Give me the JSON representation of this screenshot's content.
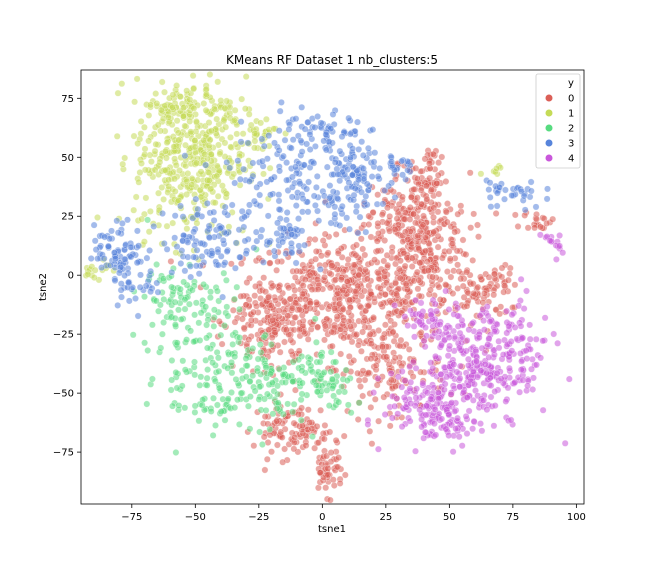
{
  "chart_data": {
    "type": "scatter",
    "title": "KMeans RF Dataset 1 nb_clusters:5",
    "xlabel": "tsne1",
    "ylabel": "tsne2",
    "xlim": [
      -95,
      103
    ],
    "ylim": [
      -97,
      87
    ],
    "xticks": [
      -75,
      -50,
      -25,
      0,
      25,
      50,
      75,
      100
    ],
    "yticks": [
      -75,
      -50,
      -25,
      0,
      25,
      50,
      75
    ],
    "grid": false,
    "legend": {
      "title": "y",
      "placement": "top-right",
      "entries": [
        "0",
        "1",
        "2",
        "3",
        "4"
      ]
    },
    "point_alpha": 0.55,
    "series": [
      {
        "name": "0",
        "color": "#db5f57",
        "clusters": [
          {
            "cx": 10,
            "cy": -8,
            "sx": 20,
            "sy": 12,
            "n": 520
          },
          {
            "cx": 40,
            "cy": 15,
            "sx": 9,
            "sy": 14,
            "n": 240
          },
          {
            "cx": 28,
            "cy": 22,
            "sx": 5,
            "sy": 8,
            "n": 70
          },
          {
            "cx": 40,
            "cy": 40,
            "sx": 5,
            "sy": 5,
            "n": 45
          },
          {
            "cx": 43,
            "cy": 49,
            "sx": 2,
            "sy": 2,
            "n": 10
          },
          {
            "cx": 62,
            "cy": -8,
            "sx": 6,
            "sy": 6,
            "n": 60
          },
          {
            "cx": 70,
            "cy": -2,
            "sx": 4,
            "sy": 3,
            "n": 20
          },
          {
            "cx": 25,
            "cy": -40,
            "sx": 12,
            "sy": 10,
            "n": 150
          },
          {
            "cx": -15,
            "cy": -65,
            "sx": 6,
            "sy": 6,
            "n": 70
          },
          {
            "cx": -5,
            "cy": -68,
            "sx": 4,
            "sy": 4,
            "n": 30
          },
          {
            "cx": 2,
            "cy": -83,
            "sx": 3,
            "sy": 5,
            "n": 50
          },
          {
            "cx": -20,
            "cy": -20,
            "sx": 8,
            "sy": 10,
            "n": 150
          },
          {
            "cx": 85,
            "cy": 23,
            "sx": 3,
            "sy": 2,
            "n": 20
          }
        ]
      },
      {
        "name": "1",
        "color": "#c5db57",
        "clusters": [
          {
            "cx": -52,
            "cy": 50,
            "sx": 11,
            "sy": 17,
            "n": 420
          },
          {
            "cx": -60,
            "cy": 72,
            "sx": 6,
            "sy": 4,
            "n": 40
          },
          {
            "cx": -40,
            "cy": 68,
            "sx": 4,
            "sy": 4,
            "n": 25
          },
          {
            "cx": -25,
            "cy": 60,
            "sx": 5,
            "sy": 4,
            "n": 30
          },
          {
            "cx": -90,
            "cy": 2,
            "sx": 3,
            "sy": 3,
            "n": 18
          },
          {
            "cx": 68,
            "cy": 45,
            "sx": 2,
            "sy": 1.5,
            "n": 7
          }
        ]
      },
      {
        "name": "2",
        "color": "#57db80",
        "clusters": [
          {
            "cx": -45,
            "cy": -30,
            "sx": 12,
            "sy": 15,
            "n": 160
          },
          {
            "cx": -60,
            "cy": -10,
            "sx": 5,
            "sy": 8,
            "n": 40
          },
          {
            "cx": -22,
            "cy": -48,
            "sx": 8,
            "sy": 8,
            "n": 80
          },
          {
            "cx": -5,
            "cy": -40,
            "sx": 6,
            "sy": 6,
            "n": 40
          },
          {
            "cx": 5,
            "cy": -50,
            "sx": 4,
            "sy": 5,
            "n": 30
          },
          {
            "cx": -45,
            "cy": -55,
            "sx": 7,
            "sy": 3,
            "n": 25
          }
        ]
      },
      {
        "name": "3",
        "color": "#5784db",
        "clusters": [
          {
            "cx": -80,
            "cy": 10,
            "sx": 5,
            "sy": 6,
            "n": 80
          },
          {
            "cx": -73,
            "cy": -5,
            "sx": 5,
            "sy": 4,
            "n": 25
          },
          {
            "cx": -45,
            "cy": 15,
            "sx": 9,
            "sy": 8,
            "n": 100
          },
          {
            "cx": -10,
            "cy": 40,
            "sx": 15,
            "sy": 12,
            "n": 160
          },
          {
            "cx": 0,
            "cy": 60,
            "sx": 8,
            "sy": 6,
            "n": 60
          },
          {
            "cx": 15,
            "cy": 40,
            "sx": 6,
            "sy": 8,
            "n": 80
          },
          {
            "cx": -15,
            "cy": 15,
            "sx": 5,
            "sy": 5,
            "n": 40
          },
          {
            "cx": 30,
            "cy": 45,
            "sx": 4,
            "sy": 3,
            "n": 20
          },
          {
            "cx": 75,
            "cy": 35,
            "sx": 6,
            "sy": 4,
            "n": 35
          }
        ]
      },
      {
        "name": "4",
        "color": "#c957db",
        "clusters": [
          {
            "cx": 55,
            "cy": -40,
            "sx": 10,
            "sy": 10,
            "n": 180
          },
          {
            "cx": 70,
            "cy": -35,
            "sx": 10,
            "sy": 12,
            "n": 160
          },
          {
            "cx": 40,
            "cy": -55,
            "sx": 8,
            "sy": 7,
            "n": 90
          },
          {
            "cx": 50,
            "cy": -65,
            "sx": 5,
            "sy": 4,
            "n": 40
          },
          {
            "cx": 42,
            "cy": -20,
            "sx": 6,
            "sy": 6,
            "n": 50
          },
          {
            "cx": 90,
            "cy": 13,
            "sx": 2,
            "sy": 3,
            "n": 15
          }
        ]
      }
    ]
  }
}
